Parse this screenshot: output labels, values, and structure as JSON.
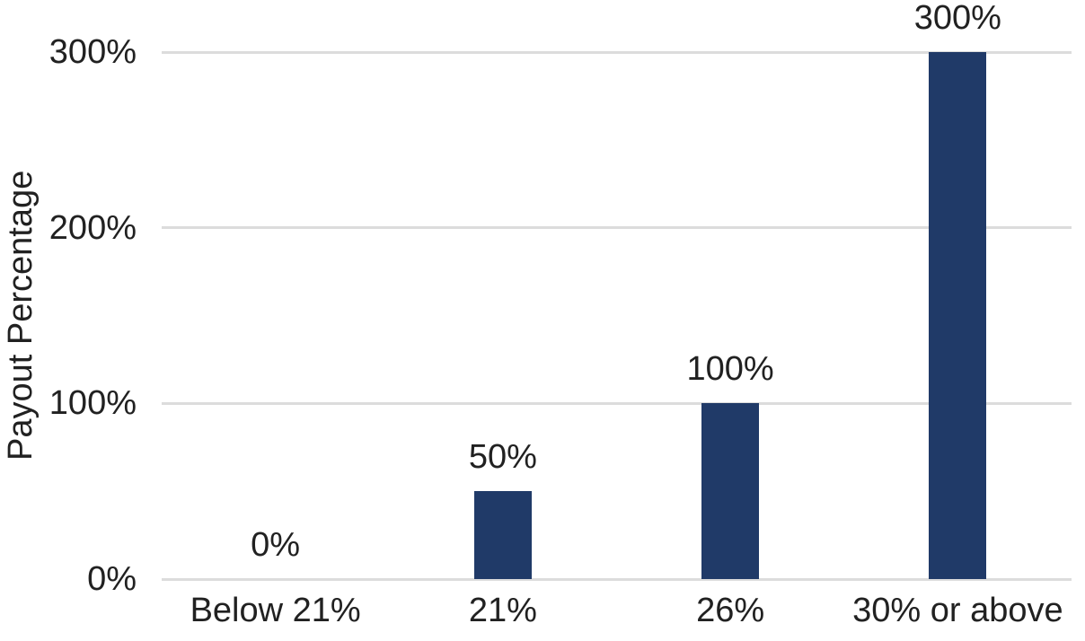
{
  "chart_data": {
    "type": "bar",
    "title": "",
    "xlabel": "",
    "ylabel": "Payout Percentage",
    "categories": [
      "Below 21%",
      "21%",
      "26%",
      "30% or above"
    ],
    "values": [
      0,
      50,
      100,
      300
    ],
    "data_labels": [
      "0%",
      "50%",
      "100%",
      "300%"
    ],
    "yticks": [
      {
        "value": 0,
        "label": "0%"
      },
      {
        "value": 100,
        "label": "100%"
      },
      {
        "value": 200,
        "label": "200%"
      },
      {
        "value": 300,
        "label": "300%"
      }
    ],
    "ylim": [
      0,
      300
    ],
    "grid": "horizontal",
    "legend_position": "none",
    "bar_color": "#203a68",
    "gridline_color": "#dcdcdc",
    "text_color": "#212121",
    "background_color": "#ffffff"
  }
}
